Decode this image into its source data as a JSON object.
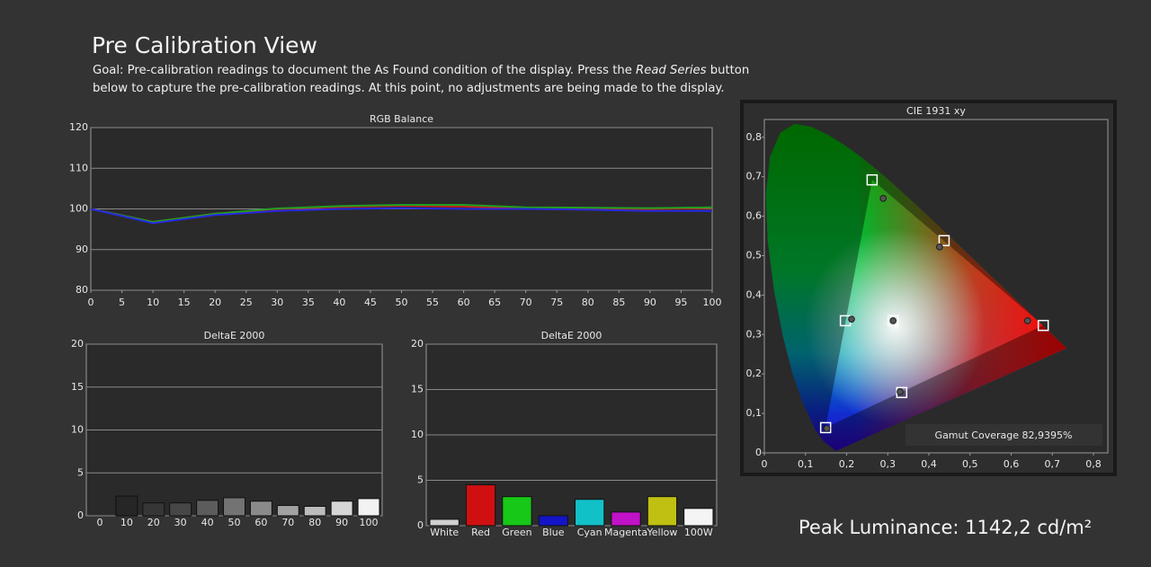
{
  "header": {
    "title": "Pre Calibration View",
    "goal": [
      "Goal: Pre-calibration readings to document the As Found condition of the display. Press the",
      "Read Series",
      "button below to capture the pre-calibration readings. At this point, no adjustments are being made to the display."
    ]
  },
  "footer": {
    "peak_luminance": "Peak Luminance: 1142,2 cd/m²"
  },
  "chart_data": [
    {
      "type": "line",
      "title": "RGB Balance",
      "x": [
        0,
        10,
        20,
        30,
        40,
        50,
        60,
        70,
        80,
        90,
        100
      ],
      "series": [
        {
          "color": "#d02020",
          "values": [
            100,
            96.8,
            98.8,
            100,
            100.5,
            100.8,
            100.6,
            100.2,
            100.1,
            100,
            100.2
          ]
        },
        {
          "color": "#20a020",
          "values": [
            100,
            96.8,
            98.8,
            100.1,
            100.7,
            101,
            101,
            100.4,
            100.3,
            100.2,
            100.4
          ]
        },
        {
          "color": "#2828e0",
          "values": [
            100,
            96.5,
            98.5,
            99.5,
            100,
            100.2,
            100,
            100,
            99.8,
            99.5,
            99.5
          ]
        }
      ],
      "xlim": [
        0,
        100
      ],
      "xticks": [
        0,
        5,
        10,
        15,
        20,
        25,
        30,
        35,
        40,
        45,
        50,
        55,
        60,
        65,
        70,
        75,
        80,
        85,
        90,
        95,
        100
      ],
      "ylim": [
        80,
        120
      ],
      "yticks": [
        80,
        90,
        100,
        110,
        120
      ],
      "grid": true
    },
    {
      "type": "bar",
      "title": "DeltaE 2000",
      "categories": [
        "0",
        "10",
        "20",
        "30",
        "40",
        "50",
        "60",
        "70",
        "80",
        "90",
        "100"
      ],
      "values": [
        null,
        2.3,
        1.5,
        1.5,
        1.8,
        2.1,
        1.7,
        1.2,
        1.1,
        1.7,
        2.0
      ],
      "colors": [
        "#1a1a1a",
        "#262626",
        "#363636",
        "#474747",
        "#5c5c5c",
        "#737373",
        "#8a8a8a",
        "#a2a2a2",
        "#bcbcbc",
        "#d6d6d6",
        "#f2f2f2"
      ],
      "ylim": [
        0,
        20
      ],
      "yticks": [
        0,
        5,
        10,
        15,
        20
      ],
      "grid": true
    },
    {
      "type": "bar",
      "title": "DeltaE 2000",
      "categories": [
        "White",
        "Red",
        "Green",
        "Blue",
        "Cyan",
        "Magenta",
        "Yellow",
        "100W"
      ],
      "values": [
        0.7,
        4.5,
        3.2,
        1.1,
        2.9,
        1.5,
        3.2,
        1.9
      ],
      "colors": [
        "#d0d0d0",
        "#d01010",
        "#18c818",
        "#1414c8",
        "#12c0c8",
        "#c012c8",
        "#c0c012",
        "#f4f4f4"
      ],
      "ylim": [
        0,
        20
      ],
      "yticks": [
        0,
        5,
        10,
        15,
        20
      ],
      "grid": true
    },
    {
      "type": "scatter",
      "title": "CIE 1931 xy",
      "annotation": "Gamut Coverage 82,9395%",
      "series": [
        {
          "marker": "square",
          "color": "#ffffff",
          "x": [
            0.678,
            0.262,
            0.149,
            0.197,
            0.334,
            0.437,
            0.313
          ],
          "y": [
            0.323,
            0.692,
            0.064,
            0.335,
            0.153,
            0.538,
            0.335
          ]
        },
        {
          "marker": "circle",
          "color": "#555555",
          "x": [
            0.64,
            0.289,
            0.152,
            0.212,
            0.33,
            0.426,
            0.313
          ],
          "y": [
            0.335,
            0.645,
            0.062,
            0.339,
            0.155,
            0.522,
            0.335
          ]
        }
      ],
      "xlim": [
        0,
        0.835
      ],
      "xticks": [
        0,
        {
          "value": 0.1,
          "label": "0,1"
        },
        {
          "value": 0.2,
          "label": "0,2"
        },
        {
          "value": 0.3,
          "label": "0,3"
        },
        {
          "value": 0.4,
          "label": "0,4"
        },
        {
          "value": 0.5,
          "label": "0,5"
        },
        {
          "value": 0.6,
          "label": "0,6"
        },
        {
          "value": 0.7,
          "label": "0,7"
        },
        {
          "value": 0.8,
          "label": "0,8"
        }
      ],
      "ylim": [
        0,
        0.845
      ],
      "yticks": [
        0,
        {
          "value": 0.1,
          "label": "0,1"
        },
        {
          "value": 0.2,
          "label": "0,2"
        },
        {
          "value": 0.3,
          "label": "0,3"
        },
        {
          "value": 0.4,
          "label": "0,4"
        },
        {
          "value": 0.5,
          "label": "0,5"
        },
        {
          "value": 0.6,
          "label": "0,6"
        },
        {
          "value": 0.7,
          "label": "0,7"
        },
        {
          "value": 0.8,
          "label": "0,8"
        }
      ],
      "grid": false
    }
  ]
}
